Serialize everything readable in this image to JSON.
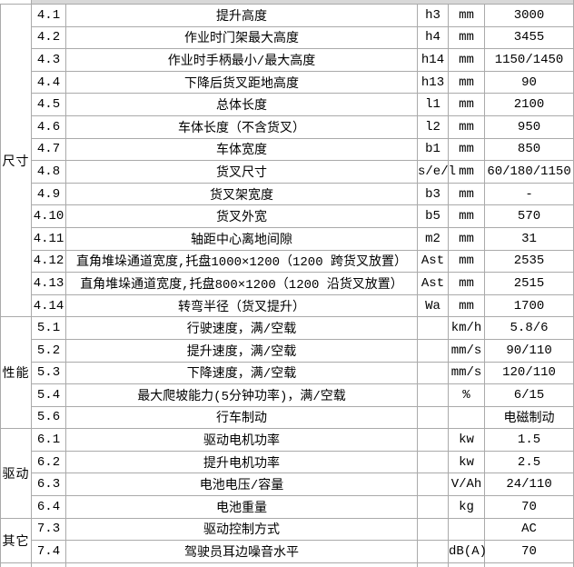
{
  "colors": {
    "row_shade": "#efefef",
    "top_sliver": "#d8d8d8",
    "border": "#aaaaaa",
    "text": "#000000"
  },
  "table": {
    "columns": [
      "category",
      "row_number",
      "description",
      "symbol",
      "unit",
      "value"
    ],
    "sections": [
      {
        "category": "尺寸",
        "rows": [
          {
            "no": "4.1",
            "desc": "提升高度",
            "symbol": "h3",
            "unit": "mm",
            "value": "3000"
          },
          {
            "no": "4.2",
            "desc": "作业时门架最大高度",
            "symbol": "h4",
            "unit": "mm",
            "value": "3455"
          },
          {
            "no": "4.3",
            "desc": "作业时手柄最小/最大高度",
            "symbol": "h14",
            "unit": "mm",
            "value": "1150/1450"
          },
          {
            "no": "4.4",
            "desc": "下降后货叉距地高度",
            "symbol": "h13",
            "unit": "mm",
            "value": "90"
          },
          {
            "no": "4.5",
            "desc": "总体长度",
            "symbol": "l1",
            "unit": "mm",
            "value": "2100"
          },
          {
            "no": "4.6",
            "desc": "车体长度（不含货叉）",
            "symbol": "l2",
            "unit": "mm",
            "value": "950"
          },
          {
            "no": "4.7",
            "desc": "车体宽度",
            "symbol": "b1",
            "unit": "mm",
            "value": "850"
          },
          {
            "no": "4.8",
            "desc": "货叉尺寸",
            "symbol": "s/e/l",
            "unit": "mm",
            "value": "60/180/1150"
          },
          {
            "no": "4.9",
            "desc": "货叉架宽度",
            "symbol": "b3",
            "unit": "mm",
            "value": "-"
          },
          {
            "no": "4.10",
            "desc": "货叉外宽",
            "symbol": "b5",
            "unit": "mm",
            "value": "570"
          },
          {
            "no": "4.11",
            "desc": "轴距中心离地间隙",
            "symbol": "m2",
            "unit": "mm",
            "value": "31"
          },
          {
            "no": "4.12",
            "desc": "直角堆垛通道宽度,托盘1000×1200（1200 跨货叉放置）",
            "symbol": "Ast",
            "unit": "mm",
            "value": "2535"
          },
          {
            "no": "4.13",
            "desc": "直角堆垛通道宽度,托盘800×1200（1200 沿货叉放置）",
            "symbol": "Ast",
            "unit": "mm",
            "value": "2515"
          },
          {
            "no": "4.14",
            "desc": "转弯半径（货叉提升）",
            "symbol": "Wa",
            "unit": "mm",
            "value": "1700"
          }
        ]
      },
      {
        "category": "性能",
        "rows": [
          {
            "no": "5.1",
            "desc": "行驶速度，满/空载",
            "symbol": "",
            "unit": "km/h",
            "value": "5.8/6"
          },
          {
            "no": "5.2",
            "desc": "提升速度，满/空载",
            "symbol": "",
            "unit": "mm/s",
            "value": "90/110"
          },
          {
            "no": "5.3",
            "desc": "下降速度，满/空载",
            "symbol": "",
            "unit": "mm/s",
            "value": "120/110"
          },
          {
            "no": "5.4",
            "desc": "最大爬坡能力(5分钟功率)，满/空载",
            "symbol": "",
            "unit": "%",
            "value": "6/15"
          },
          {
            "no": "5.6",
            "desc": "行车制动",
            "symbol": "",
            "unit": "",
            "value": "电磁制动"
          }
        ]
      },
      {
        "category": "驱动",
        "rows": [
          {
            "no": "6.1",
            "desc": "驱动电机功率",
            "symbol": "",
            "unit": "kw",
            "value": "1.5"
          },
          {
            "no": "6.2",
            "desc": "提升电机功率",
            "symbol": "",
            "unit": "kw",
            "value": "2.5"
          },
          {
            "no": "6.3",
            "desc": "电池电压/容量",
            "symbol": "",
            "unit": "V/Ah",
            "value": "24/110"
          },
          {
            "no": "6.4",
            "desc": "电池重量",
            "symbol": "",
            "unit": "kg",
            "value": "70"
          }
        ]
      },
      {
        "category": "其它",
        "rows": [
          {
            "no": "7.3",
            "desc": "驱动控制方式",
            "symbol": "",
            "unit": "",
            "value": "AC"
          },
          {
            "no": "7.4",
            "desc": "驾驶员耳边噪音水平",
            "symbol": "",
            "unit": "dB(A)",
            "value": "70"
          }
        ]
      }
    ]
  }
}
